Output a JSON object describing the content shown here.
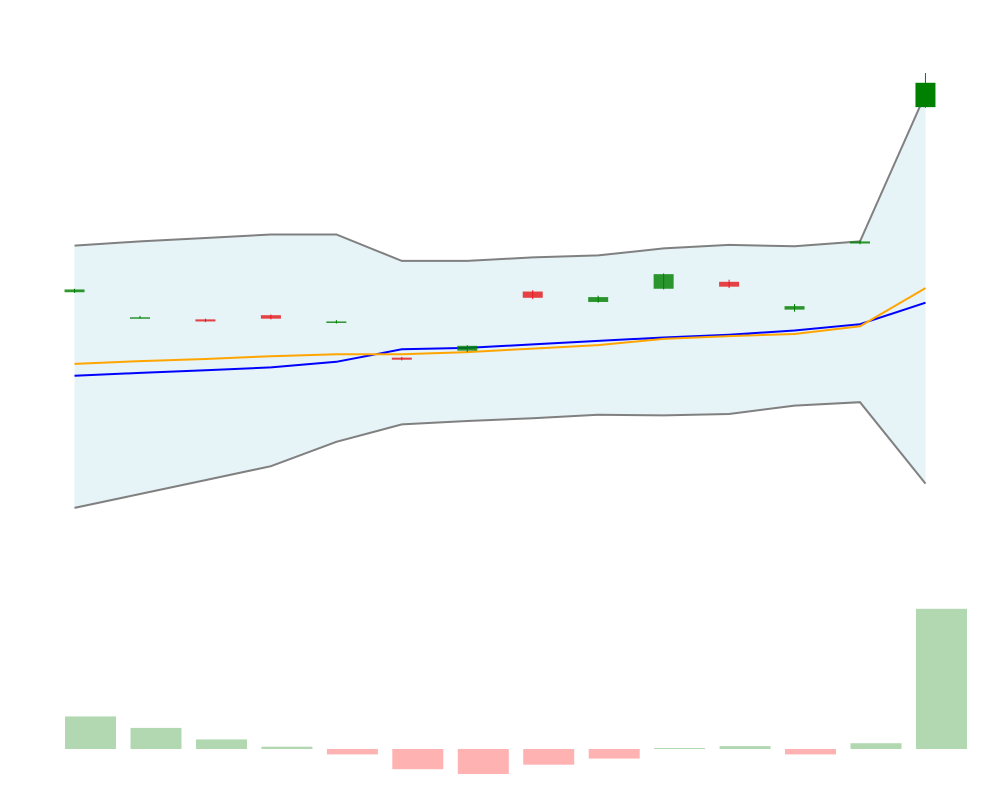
{
  "chart_data": [
    {
      "type": "candlestick",
      "panel": "price",
      "title": "",
      "xlabel": "",
      "ylabel": "",
      "x": [
        0,
        1,
        2,
        3,
        4,
        5,
        6,
        7,
        8,
        9,
        10,
        11,
        12,
        13
      ],
      "xlim": [
        -0.1,
        13.1
      ],
      "ylim": [
        0,
        72
      ],
      "candles": [
        {
          "open": 41.5,
          "close": 41.9,
          "high": 42.0,
          "low": 41.4
        },
        {
          "open": 37.9,
          "close": 37.9,
          "high": 38.1,
          "low": 37.7
        },
        {
          "open": 37.6,
          "close": 37.3,
          "high": 37.7,
          "low": 37.2
        },
        {
          "open": 38.2,
          "close": 37.7,
          "high": 38.3,
          "low": 37.6
        },
        {
          "open": 37.3,
          "close": 37.3,
          "high": 37.5,
          "low": 37.0
        },
        {
          "open": 32.1,
          "close": 31.8,
          "high": 32.2,
          "low": 31.7
        },
        {
          "open": 33.1,
          "close": 33.8,
          "high": 33.9,
          "low": 32.9
        },
        {
          "open": 41.6,
          "close": 40.7,
          "high": 41.8,
          "low": 40.5
        },
        {
          "open": 40.1,
          "close": 40.8,
          "high": 41.0,
          "low": 40.0
        },
        {
          "open": 42.0,
          "close": 44.1,
          "high": 44.2,
          "low": 41.9
        },
        {
          "open": 43.0,
          "close": 42.3,
          "high": 43.3,
          "low": 42.1
        },
        {
          "open": 39.0,
          "close": 39.5,
          "high": 39.8,
          "low": 38.7
        },
        {
          "open": 48.5,
          "close": 48.8,
          "high": 49.0,
          "low": 48.4
        },
        {
          "open": 68.1,
          "close": 71.6,
          "high": 73.0,
          "low": 68.0
        }
      ],
      "series": [
        {
          "kind": "moving-average",
          "color": "#0000ff",
          "values": [
            29.5,
            29.9,
            30.3,
            30.7,
            31.5,
            33.3,
            33.5,
            34.0,
            34.5,
            35.0,
            35.4,
            36.0,
            36.9,
            40.0
          ]
        },
        {
          "kind": "moving-average",
          "color": "#ffa500",
          "values": [
            31.2,
            31.6,
            31.9,
            32.3,
            32.6,
            32.6,
            32.9,
            33.4,
            33.9,
            34.8,
            35.2,
            35.5,
            36.6,
            42.1
          ]
        },
        {
          "kind": "band-upper",
          "color": "#808080",
          "values": [
            48.2,
            48.8,
            49.3,
            49.8,
            49.8,
            46.0,
            46.0,
            46.5,
            46.8,
            47.8,
            48.3,
            48.1,
            48.8,
            70.0
          ]
        },
        {
          "kind": "band-lower",
          "color": "#808080",
          "values": [
            10.5,
            12.5,
            14.5,
            16.5,
            20.0,
            22.5,
            23.0,
            23.4,
            23.9,
            23.8,
            24.0,
            25.2,
            25.7,
            14.0
          ]
        }
      ],
      "band_fill": "#add8e6",
      "colors": {
        "up": "#008000",
        "down": "#e41a1c"
      },
      "grid": false,
      "legend": "none"
    },
    {
      "type": "bar",
      "panel": "histogram",
      "title": "",
      "xlabel": "",
      "ylabel": "",
      "x": [
        0,
        1,
        2,
        3,
        4,
        5,
        6,
        7,
        8,
        9,
        10,
        11,
        12,
        13
      ],
      "values": [
        1.7,
        1.1,
        0.5,
        0.12,
        -0.28,
        -1.05,
        -1.3,
        -0.82,
        -0.5,
        0.05,
        0.15,
        -0.28,
        0.3,
        7.3
      ],
      "ylim": [
        -1.5,
        7.5
      ],
      "colors": {
        "positive": "#b2d8b2",
        "negative": "#ffb2b2"
      },
      "grid": false,
      "legend": "none"
    }
  ]
}
